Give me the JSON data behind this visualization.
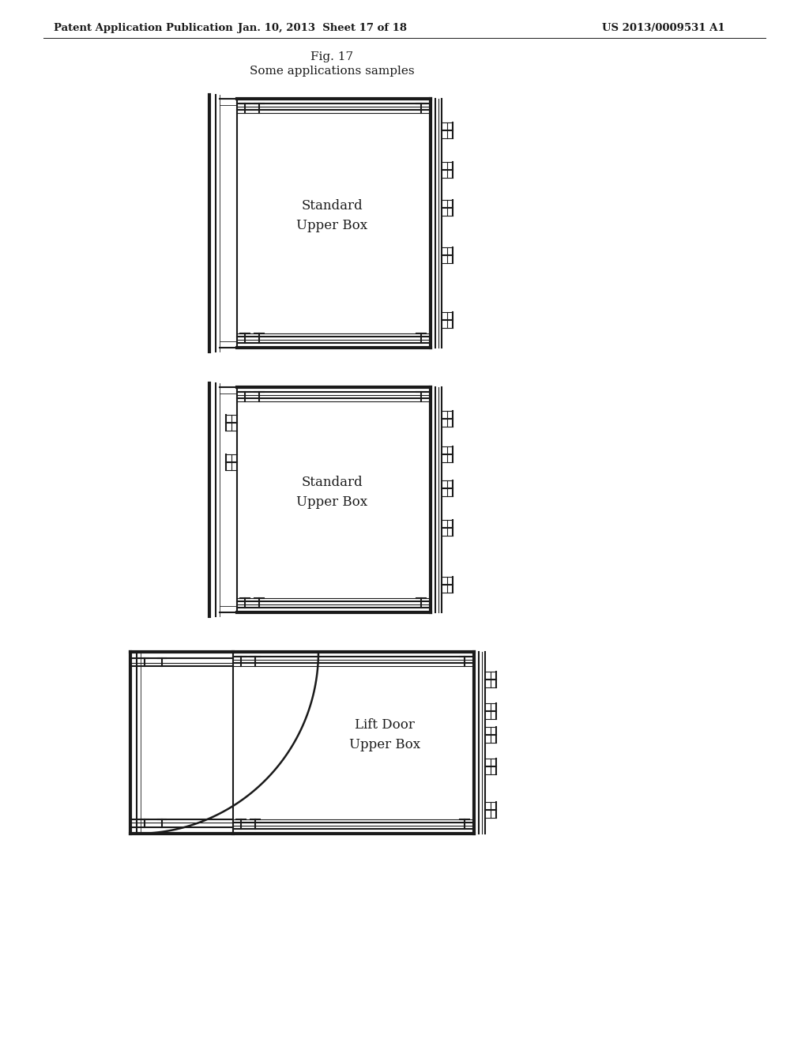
{
  "bg_color": "#ffffff",
  "line_color": "#1a1a1a",
  "header_left": "Patent Application Publication",
  "header_center": "Jan. 10, 2013  Sheet 17 of 18",
  "header_right": "US 2013/0009531 A1",
  "fig_title": "Fig. 17",
  "fig_subtitle": "Some applications samples",
  "d1_label": "Standard\nUpper Box",
  "d2_label": "Standard\nUpper Box",
  "d3_label": "Lift Door\nUpper Box",
  "lw_thin": 0.8,
  "lw_med": 1.5,
  "lw_thick": 3.0
}
